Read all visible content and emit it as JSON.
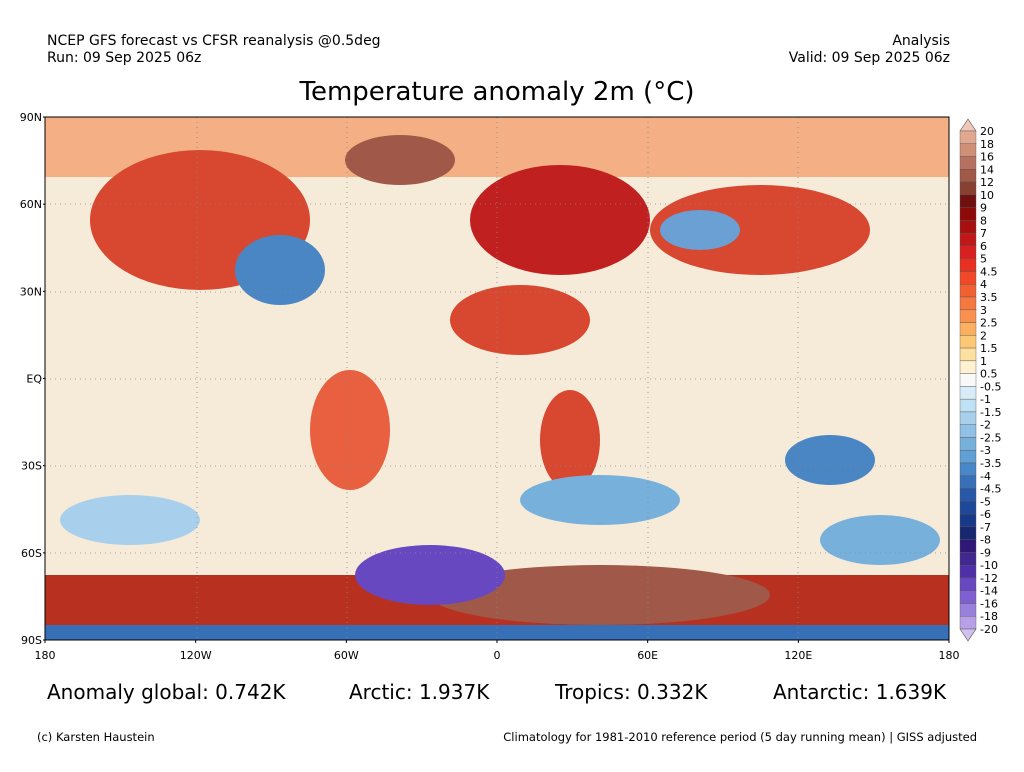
{
  "header": {
    "left": [
      "NCEP GFS forecast vs CFSR reanalysis @0.5deg",
      "Run: 09 Sep 2025 06z"
    ],
    "right": [
      "Analysis",
      "Valid: 09 Sep 2025 06z"
    ]
  },
  "title": "Temperature anomaly 2m (°C)",
  "map": {
    "lat_labels": [
      "90N",
      "60N",
      "30N",
      "EQ",
      "30S",
      "60S",
      "90S"
    ],
    "lon_labels": [
      "180",
      "120W",
      "60W",
      "0",
      "60E",
      "120E",
      "180"
    ]
  },
  "colorbar": {
    "labels": [
      "20",
      "18",
      "16",
      "14",
      "12",
      "10",
      "9",
      "8",
      "7",
      "6",
      "5",
      "4.5",
      "4",
      "3.5",
      "3",
      "2.5",
      "2",
      "1.5",
      "1",
      "0.5",
      "-0.5",
      "-1",
      "-1.5",
      "-2",
      "-2.5",
      "-3",
      "-3.5",
      "-4",
      "-4.5",
      "-5",
      "-6",
      "-7",
      "-8",
      "-9",
      "-10",
      "-12",
      "-14",
      "-16",
      "-18",
      "-20"
    ],
    "colors": [
      "#f0c8b8",
      "#e0a890",
      "#d09078",
      "#b87060",
      "#a05848",
      "#884030",
      "#701010",
      "#8c0a0a",
      "#a81010",
      "#c01818",
      "#d82020",
      "#e83020",
      "#f04828",
      "#f06030",
      "#f47840",
      "#f89050",
      "#fbb060",
      "#fcc878",
      "#fde0a0",
      "#fef0d0",
      "#f8f8f8",
      "#d8ecf8",
      "#c0e0f4",
      "#a8d0ec",
      "#90c0e4",
      "#78b0dc",
      "#60a0d4",
      "#4888c8",
      "#3870b8",
      "#2858a8",
      "#204898",
      "#183888",
      "#182870",
      "#301878",
      "#402890",
      "#5030a8",
      "#6848c0",
      "#8060d0",
      "#9880dc",
      "#b8a0e8",
      "#d0c0f0"
    ]
  },
  "stats": [
    "Anomaly global: 0.742K",
    "Arctic: 1.937K",
    "Tropics: 0.332K",
    "Antarctic: 1.639K"
  ],
  "footer": {
    "left": "(c) Karsten Haustein",
    "right": "Climatology for 1981-2010 reference period (5 day running mean) | GISS adjusted"
  }
}
